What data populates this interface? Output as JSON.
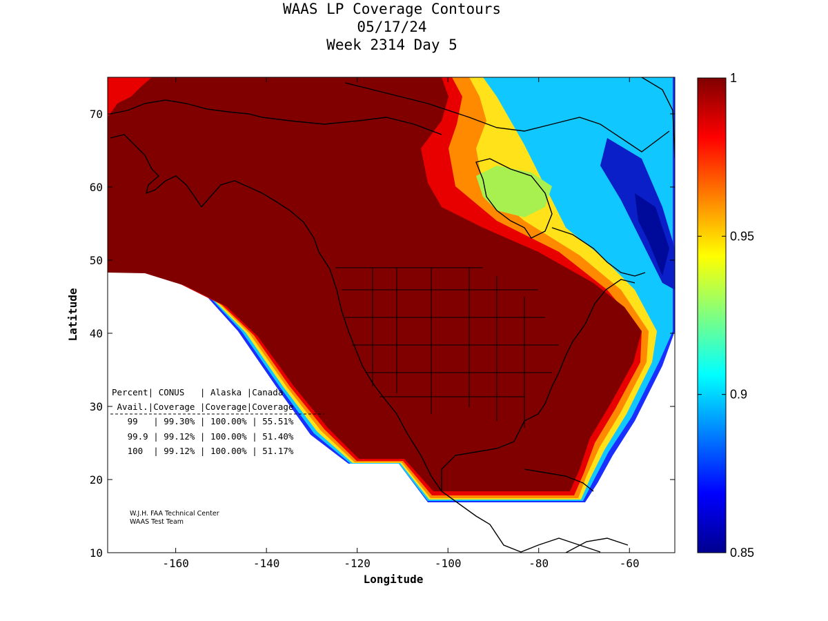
{
  "title": {
    "line1": "WAAS LP Coverage Contours",
    "line2": "05/17/24",
    "line3": "Week 2314 Day 5"
  },
  "axes": {
    "xlabel": "Longitude",
    "ylabel": "Latitude",
    "xlim": [
      -175,
      -50
    ],
    "ylim": [
      10,
      75
    ],
    "xticks": [
      -160,
      -140,
      -120,
      -100,
      -80,
      -60
    ],
    "yticks": [
      10,
      20,
      30,
      40,
      50,
      60,
      70
    ]
  },
  "colorbar": {
    "range": [
      0.85,
      1
    ],
    "ticks": [
      {
        "value": 1,
        "label": "1"
      },
      {
        "value": 0.95,
        "label": "0.95"
      },
      {
        "value": 0.9,
        "label": "0.9"
      },
      {
        "value": 0.85,
        "label": "0.85"
      }
    ],
    "colormap": [
      "#7f0000",
      "#ff0000",
      "#ff8000",
      "#ffff00",
      "#80ff80",
      "#00ffff",
      "#0080ff",
      "#0000ff",
      "#00008f"
    ]
  },
  "colors": {
    "full_coverage": "#800000",
    "region_outline_yellow": "#ffff66",
    "region_outline_cyan": "#66e0e0",
    "coastline": "#000000"
  },
  "table": {
    "header1": "Percent| CONUS   | Alaska |Canada",
    "header2": " Avail.|Coverage |Coverage|Coverage",
    "rows": [
      "   99   | 99.30% | 100.00% | 55.51%",
      "   99.9 | 99.12% | 100.00% | 51.40%",
      "   100  | 99.12% | 100.00% | 51.17%"
    ]
  },
  "credit": {
    "line1": "W.J.H. FAA Technical Center",
    "line2": "WAAS Test Team"
  },
  "chart_data": {
    "type": "heatmap",
    "title": "WAAS LP Coverage Contours",
    "xlabel": "Longitude",
    "ylabel": "Latitude",
    "xlim": [
      -175,
      -50
    ],
    "ylim": [
      10,
      75
    ],
    "zlim": [
      0.85,
      1
    ],
    "coverage_table": {
      "columns": [
        "Percent Avail.",
        "CONUS Coverage",
        "Alaska Coverage",
        "Canada Coverage"
      ],
      "rows": [
        [
          "99",
          "99.30%",
          "100.00%",
          "55.51%"
        ],
        [
          "99.9",
          "99.12%",
          "100.00%",
          "51.40%"
        ],
        [
          "100",
          "99.12%",
          "100.00%",
          "51.17%"
        ]
      ]
    }
  }
}
